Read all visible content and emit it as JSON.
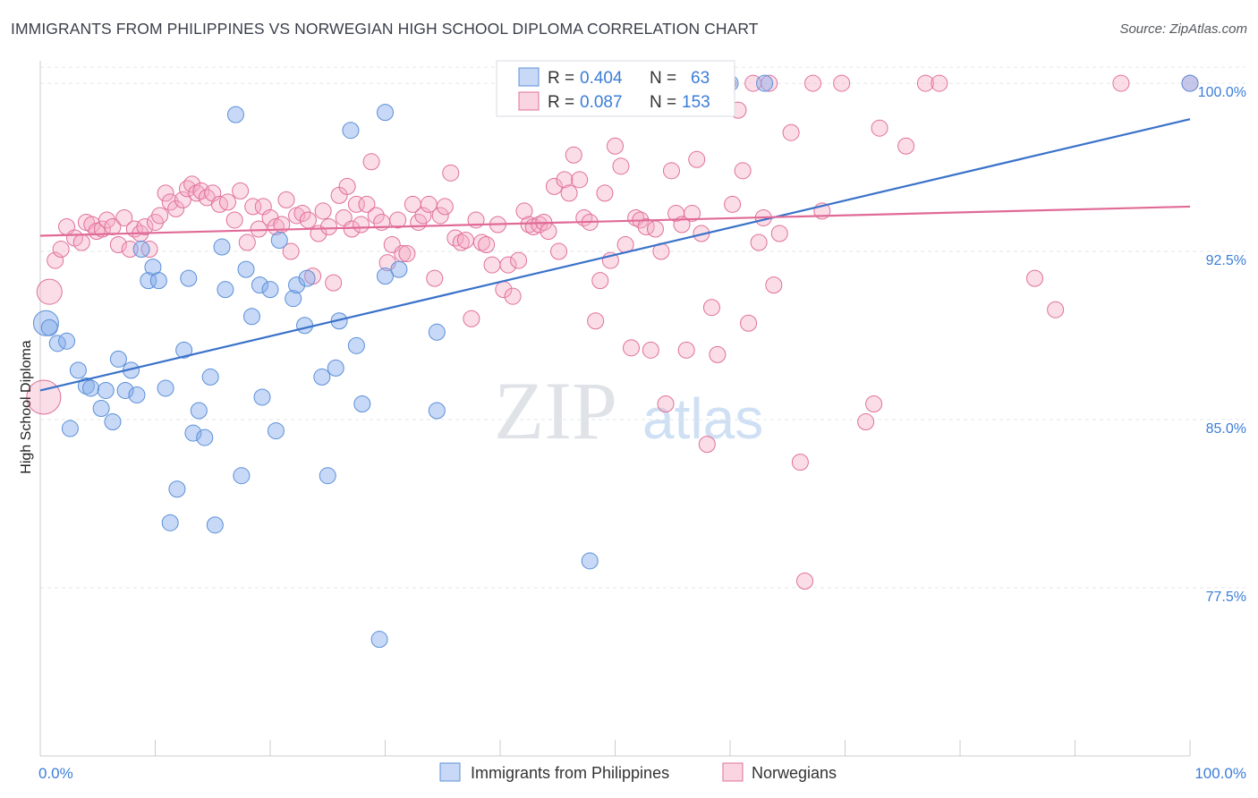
{
  "title": "IMMIGRANTS FROM PHILIPPINES VS NORWEGIAN HIGH SCHOOL DIPLOMA CORRELATION CHART",
  "source": "Source: ZipAtlas.com",
  "watermark": {
    "zip": "ZIP",
    "atlas": "atlas"
  },
  "colors": {
    "blue": "#5b8fd8",
    "blue_fill": "rgba(130,170,235,0.45)",
    "pink": "#e0709a",
    "pink_fill": "rgba(245,170,195,0.40)",
    "label_blue": "#3b7dd8"
  },
  "legend_box": {
    "rows": [
      {
        "r_label": "R =",
        "r_value": "0.404",
        "n_label": "N =",
        "n_value": "63"
      },
      {
        "r_label": "R =",
        "r_value": "0.087",
        "n_label": "N =",
        "n_value": "153"
      }
    ]
  },
  "chart_data": {
    "type": "scatter",
    "xlabel": "",
    "ylabel": "High School Diploma",
    "x_tick_labels": [
      "0.0%",
      "100.0%"
    ],
    "y_tick_labels": [
      "100.0%",
      "92.5%",
      "85.0%",
      "77.5%"
    ],
    "y_ticks": [
      100.0,
      92.5,
      85.0,
      77.5
    ],
    "xlim": [
      0,
      100
    ],
    "ylim": [
      70.0,
      101.0
    ],
    "grid": true,
    "series": [
      {
        "name": "Immigrants from Philippines",
        "color": "#5b8fd8",
        "trend": {
          "x": [
            0,
            100
          ],
          "y": [
            86.3,
            98.4
          ]
        },
        "points": [
          [
            0.5,
            89.3,
            2
          ],
          [
            0.8,
            89.1,
            1
          ],
          [
            1.5,
            88.4,
            1
          ],
          [
            2.3,
            88.5,
            1
          ],
          [
            2.6,
            84.6,
            1
          ],
          [
            3.3,
            87.2,
            1
          ],
          [
            4.0,
            86.5,
            1
          ],
          [
            4.4,
            86.4,
            1
          ],
          [
            5.3,
            85.5,
            1
          ],
          [
            5.7,
            86.3,
            1
          ],
          [
            6.3,
            84.9,
            1
          ],
          [
            6.8,
            87.7,
            1
          ],
          [
            7.4,
            86.3,
            1
          ],
          [
            7.9,
            87.2,
            1
          ],
          [
            8.4,
            86.1,
            1
          ],
          [
            8.8,
            92.6,
            1
          ],
          [
            9.4,
            91.2,
            1
          ],
          [
            9.8,
            91.8,
            1
          ],
          [
            10.3,
            91.2,
            1
          ],
          [
            10.9,
            86.4,
            1
          ],
          [
            11.3,
            80.4,
            1
          ],
          [
            11.9,
            81.9,
            1
          ],
          [
            12.5,
            88.1,
            1
          ],
          [
            12.9,
            91.3,
            1
          ],
          [
            13.3,
            84.4,
            1
          ],
          [
            13.8,
            85.4,
            1
          ],
          [
            14.3,
            84.2,
            1
          ],
          [
            14.8,
            86.9,
            1
          ],
          [
            15.2,
            80.3,
            1
          ],
          [
            15.8,
            92.7,
            1
          ],
          [
            16.1,
            90.8,
            1
          ],
          [
            17.0,
            98.6,
            1
          ],
          [
            17.5,
            82.5,
            1
          ],
          [
            17.9,
            91.7,
            1
          ],
          [
            18.4,
            89.6,
            1
          ],
          [
            19.1,
            91.0,
            1
          ],
          [
            19.3,
            86.0,
            1
          ],
          [
            20.0,
            90.8,
            1
          ],
          [
            20.5,
            84.5,
            1
          ],
          [
            20.8,
            93.0,
            1
          ],
          [
            22.0,
            90.4,
            1
          ],
          [
            22.3,
            91.0,
            1
          ],
          [
            23.0,
            89.2,
            1
          ],
          [
            23.2,
            91.3,
            1
          ],
          [
            24.5,
            86.9,
            1
          ],
          [
            25.0,
            82.5,
            1
          ],
          [
            25.7,
            87.3,
            1
          ],
          [
            26.0,
            89.4,
            1
          ],
          [
            27.0,
            97.9,
            1
          ],
          [
            27.5,
            88.3,
            1
          ],
          [
            28.0,
            85.7,
            1
          ],
          [
            29.5,
            75.2,
            1
          ],
          [
            30.0,
            98.7,
            1
          ],
          [
            30.0,
            91.4,
            1
          ],
          [
            31.2,
            91.7,
            1
          ],
          [
            34.5,
            88.9,
            1
          ],
          [
            34.5,
            85.4,
            1
          ],
          [
            47.8,
            78.7,
            1
          ],
          [
            60.0,
            100.0,
            1
          ],
          [
            63.0,
            100.0,
            1
          ],
          [
            100.0,
            100.0,
            1
          ]
        ]
      },
      {
        "name": "Norwegians",
        "color": "#e0709a",
        "trend": {
          "x": [
            0,
            100
          ],
          "y": [
            93.2,
            94.5
          ]
        },
        "points": [
          [
            0.3,
            86.0,
            3
          ],
          [
            0.8,
            90.7,
            2
          ],
          [
            1.3,
            92.1,
            1
          ],
          [
            1.8,
            92.6,
            1
          ],
          [
            2.3,
            93.6,
            1
          ],
          [
            3.0,
            93.1,
            1
          ],
          [
            3.6,
            92.9,
            1
          ],
          [
            4.0,
            93.8,
            1
          ],
          [
            4.5,
            93.7,
            1
          ],
          [
            4.9,
            93.4,
            1
          ],
          [
            5.4,
            93.5,
            1
          ],
          [
            5.8,
            93.9,
            1
          ],
          [
            6.3,
            93.6,
            1
          ],
          [
            6.8,
            92.8,
            1
          ],
          [
            7.3,
            94.0,
            1
          ],
          [
            7.8,
            92.6,
            1
          ],
          [
            8.2,
            93.5,
            1
          ],
          [
            8.7,
            93.3,
            1
          ],
          [
            9.1,
            93.6,
            1
          ],
          [
            9.5,
            92.6,
            1
          ],
          [
            10.0,
            93.8,
            1
          ],
          [
            10.4,
            94.1,
            1
          ],
          [
            10.9,
            95.1,
            1
          ],
          [
            11.3,
            94.7,
            1
          ],
          [
            11.8,
            94.4,
            1
          ],
          [
            12.4,
            94.8,
            1
          ],
          [
            12.8,
            95.3,
            1
          ],
          [
            13.2,
            95.5,
            1
          ],
          [
            13.6,
            95.1,
            1
          ],
          [
            14.0,
            95.2,
            1
          ],
          [
            14.5,
            94.9,
            1
          ],
          [
            15.0,
            95.1,
            1
          ],
          [
            15.6,
            94.6,
            1
          ],
          [
            16.3,
            94.7,
            1
          ],
          [
            16.9,
            93.9,
            1
          ],
          [
            17.4,
            95.2,
            1
          ],
          [
            18.0,
            92.9,
            1
          ],
          [
            18.5,
            94.5,
            1
          ],
          [
            19.0,
            93.5,
            1
          ],
          [
            19.4,
            94.5,
            1
          ],
          [
            20.0,
            94.0,
            1
          ],
          [
            20.5,
            93.6,
            1
          ],
          [
            21.0,
            93.7,
            1
          ],
          [
            21.4,
            94.8,
            1
          ],
          [
            21.8,
            92.5,
            1
          ],
          [
            22.3,
            94.1,
            1
          ],
          [
            22.8,
            94.2,
            1
          ],
          [
            23.3,
            93.9,
            1
          ],
          [
            23.7,
            91.4,
            1
          ],
          [
            24.2,
            93.3,
            1
          ],
          [
            24.6,
            94.3,
            1
          ],
          [
            25.1,
            93.6,
            1
          ],
          [
            25.5,
            91.1,
            1
          ],
          [
            26.0,
            95.0,
            1
          ],
          [
            26.4,
            94.0,
            1
          ],
          [
            26.7,
            95.4,
            1
          ],
          [
            27.1,
            93.5,
            1
          ],
          [
            27.5,
            94.6,
            1
          ],
          [
            27.9,
            93.7,
            1
          ],
          [
            28.4,
            94.6,
            1
          ],
          [
            28.8,
            96.5,
            1
          ],
          [
            29.2,
            94.1,
            1
          ],
          [
            29.7,
            93.8,
            1
          ],
          [
            30.2,
            92.0,
            1
          ],
          [
            30.6,
            92.8,
            1
          ],
          [
            31.1,
            93.9,
            1
          ],
          [
            31.5,
            92.4,
            1
          ],
          [
            31.9,
            92.4,
            1
          ],
          [
            32.4,
            94.6,
            1
          ],
          [
            32.9,
            93.8,
            1
          ],
          [
            33.3,
            94.1,
            1
          ],
          [
            33.8,
            94.6,
            1
          ],
          [
            34.3,
            91.3,
            1
          ],
          [
            34.8,
            94.1,
            1
          ],
          [
            35.2,
            94.5,
            1
          ],
          [
            35.7,
            96.0,
            1
          ],
          [
            36.1,
            93.1,
            1
          ],
          [
            36.6,
            92.9,
            1
          ],
          [
            37.0,
            93.0,
            1
          ],
          [
            37.5,
            89.5,
            1
          ],
          [
            37.9,
            93.9,
            1
          ],
          [
            38.4,
            92.9,
            1
          ],
          [
            38.8,
            92.8,
            1
          ],
          [
            39.3,
            91.9,
            1
          ],
          [
            39.8,
            93.7,
            1
          ],
          [
            40.3,
            90.8,
            1
          ],
          [
            40.7,
            91.9,
            1
          ],
          [
            41.1,
            90.5,
            1
          ],
          [
            41.6,
            92.1,
            1
          ],
          [
            42.1,
            94.3,
            1
          ],
          [
            42.5,
            93.7,
            1
          ],
          [
            42.9,
            93.6,
            1
          ],
          [
            43.4,
            93.7,
            1
          ],
          [
            43.8,
            93.8,
            1
          ],
          [
            44.2,
            93.4,
            1
          ],
          [
            44.7,
            95.4,
            1
          ],
          [
            45.1,
            92.5,
            1
          ],
          [
            45.6,
            95.7,
            1
          ],
          [
            46.0,
            95.1,
            1
          ],
          [
            46.4,
            96.8,
            1
          ],
          [
            46.9,
            95.7,
            1
          ],
          [
            47.3,
            94.0,
            1
          ],
          [
            47.8,
            93.8,
            1
          ],
          [
            48.3,
            89.4,
            1
          ],
          [
            48.7,
            91.2,
            1
          ],
          [
            49.1,
            95.1,
            1
          ],
          [
            49.6,
            92.1,
            1
          ],
          [
            50.0,
            97.2,
            1
          ],
          [
            50.5,
            96.3,
            1
          ],
          [
            50.9,
            92.8,
            1
          ],
          [
            51.4,
            88.2,
            1
          ],
          [
            51.8,
            94.0,
            1
          ],
          [
            52.2,
            93.9,
            1
          ],
          [
            52.7,
            93.6,
            1
          ],
          [
            53.1,
            88.1,
            1
          ],
          [
            53.5,
            93.5,
            1
          ],
          [
            54.0,
            92.5,
            1
          ],
          [
            54.4,
            85.7,
            1
          ],
          [
            54.9,
            96.1,
            1
          ],
          [
            55.3,
            94.2,
            1
          ],
          [
            55.8,
            93.7,
            1
          ],
          [
            56.2,
            88.1,
            1
          ],
          [
            56.7,
            94.2,
            1
          ],
          [
            57.1,
            96.6,
            1
          ],
          [
            57.5,
            93.3,
            1
          ],
          [
            58.0,
            83.9,
            1
          ],
          [
            58.4,
            90.0,
            1
          ],
          [
            58.9,
            87.9,
            1
          ],
          [
            59.4,
            100.0,
            1
          ],
          [
            59.8,
            100.0,
            1
          ],
          [
            60.2,
            94.6,
            1
          ],
          [
            60.7,
            98.8,
            1
          ],
          [
            61.1,
            96.1,
            1
          ],
          [
            61.6,
            89.3,
            1
          ],
          [
            62.0,
            100.0,
            1
          ],
          [
            62.5,
            92.9,
            1
          ],
          [
            62.9,
            94.0,
            1
          ],
          [
            63.4,
            100.0,
            1
          ],
          [
            63.8,
            91.0,
            1
          ],
          [
            64.3,
            93.3,
            1
          ],
          [
            65.3,
            97.8,
            1
          ],
          [
            66.1,
            83.1,
            1
          ],
          [
            66.5,
            77.8,
            1
          ],
          [
            67.2,
            100.0,
            1
          ],
          [
            68.0,
            94.3,
            1
          ],
          [
            69.7,
            100.0,
            1
          ],
          [
            71.8,
            84.9,
            1
          ],
          [
            72.5,
            85.7,
            1
          ],
          [
            73.0,
            98.0,
            1
          ],
          [
            75.3,
            97.2,
            1
          ],
          [
            77.0,
            100.0,
            1
          ],
          [
            78.2,
            100.0,
            1
          ],
          [
            86.5,
            91.3,
            1
          ],
          [
            88.3,
            89.9,
            1
          ],
          [
            94.0,
            100.0,
            1
          ],
          [
            100.0,
            100.0,
            1
          ]
        ]
      }
    ]
  }
}
